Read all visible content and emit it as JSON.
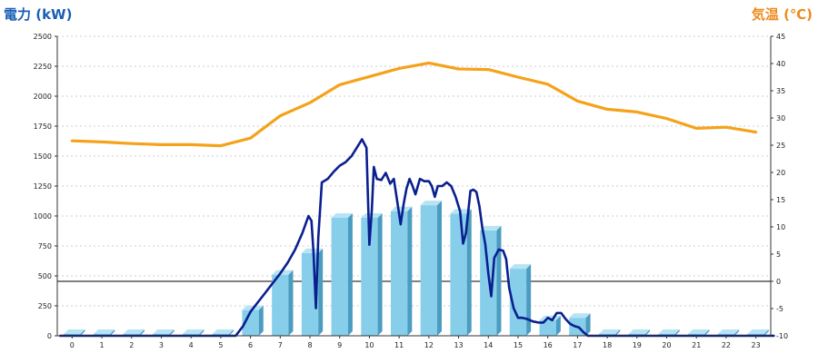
{
  "colors": {
    "power_line": "#0a1f8f",
    "temperature_line": "#f5a21b",
    "bar_front": "#87ceeb",
    "bar_side": "#4a9cc0",
    "bar_top": "#b7e4f5",
    "left_title": "#1a5fb4",
    "right_title": "#ef8a1c",
    "grid": "#bdbdbd"
  },
  "chart_data": {
    "type": "bar+line",
    "left_axis_title": "電力 (kW)",
    "right_axis_title": "気温 (℃)",
    "hours": [
      "0",
      "1",
      "2",
      "3",
      "4",
      "5",
      "6",
      "7",
      "8",
      "9",
      "10",
      "11",
      "12",
      "13",
      "14",
      "15",
      "16",
      "17",
      "18",
      "19",
      "20",
      "21",
      "22",
      "23"
    ],
    "y_left": {
      "min": 0,
      "max": 2500,
      "ticks": [
        0,
        250,
        500,
        750,
        1000,
        1250,
        1500,
        1750,
        2000,
        2250,
        2500
      ]
    },
    "y_right": {
      "min": -10,
      "max": 45,
      "ticks": [
        -10,
        -5,
        0,
        5,
        10,
        15,
        20,
        25,
        30,
        35,
        40,
        45
      ]
    },
    "grid": true,
    "bars": {
      "series_axis": "left",
      "values": [
        15,
        15,
        15,
        15,
        15,
        15,
        215,
        510,
        690,
        985,
        985,
        1040,
        1090,
        1020,
        880,
        560,
        130,
        150,
        15,
        15,
        15,
        15,
        15,
        15
      ]
    },
    "power_line": {
      "series_axis": "left",
      "points": [
        [
          -0.4,
          0
        ],
        [
          5.5,
          0
        ],
        [
          5.75,
          80
        ],
        [
          6,
          200
        ],
        [
          6.25,
          280
        ],
        [
          6.5,
          360
        ],
        [
          6.75,
          440
        ],
        [
          7,
          520
        ],
        [
          7.25,
          610
        ],
        [
          7.5,
          720
        ],
        [
          7.75,
          860
        ],
        [
          7.95,
          1000
        ],
        [
          8.05,
          960
        ],
        [
          8.12,
          700
        ],
        [
          8.2,
          230
        ],
        [
          8.28,
          820
        ],
        [
          8.4,
          1280
        ],
        [
          8.6,
          1310
        ],
        [
          8.8,
          1370
        ],
        [
          9,
          1420
        ],
        [
          9.2,
          1450
        ],
        [
          9.4,
          1500
        ],
        [
          9.6,
          1580
        ],
        [
          9.75,
          1640
        ],
        [
          9.9,
          1570
        ],
        [
          10.0,
          760
        ],
        [
          10.08,
          1050
        ],
        [
          10.15,
          1410
        ],
        [
          10.25,
          1310
        ],
        [
          10.4,
          1300
        ],
        [
          10.55,
          1360
        ],
        [
          10.7,
          1270
        ],
        [
          10.82,
          1310
        ],
        [
          10.95,
          1100
        ],
        [
          11.05,
          930
        ],
        [
          11.15,
          1100
        ],
        [
          11.25,
          1230
        ],
        [
          11.35,
          1310
        ],
        [
          11.45,
          1250
        ],
        [
          11.55,
          1180
        ],
        [
          11.7,
          1310
        ],
        [
          11.85,
          1290
        ],
        [
          12.0,
          1290
        ],
        [
          12.1,
          1250
        ],
        [
          12.2,
          1160
        ],
        [
          12.3,
          1250
        ],
        [
          12.45,
          1250
        ],
        [
          12.6,
          1280
        ],
        [
          12.75,
          1250
        ],
        [
          12.9,
          1160
        ],
        [
          13.05,
          1040
        ],
        [
          13.15,
          770
        ],
        [
          13.25,
          860
        ],
        [
          13.4,
          1210
        ],
        [
          13.5,
          1220
        ],
        [
          13.6,
          1200
        ],
        [
          13.7,
          1080
        ],
        [
          13.8,
          900
        ],
        [
          13.9,
          760
        ],
        [
          14.0,
          520
        ],
        [
          14.1,
          330
        ],
        [
          14.2,
          650
        ],
        [
          14.35,
          720
        ],
        [
          14.5,
          710
        ],
        [
          14.6,
          640
        ],
        [
          14.7,
          400
        ],
        [
          14.85,
          230
        ],
        [
          15.0,
          150
        ],
        [
          15.15,
          150
        ],
        [
          15.3,
          140
        ],
        [
          15.5,
          120
        ],
        [
          15.7,
          110
        ],
        [
          15.85,
          110
        ],
        [
          16.0,
          150
        ],
        [
          16.15,
          130
        ],
        [
          16.3,
          190
        ],
        [
          16.45,
          190
        ],
        [
          16.6,
          140
        ],
        [
          16.75,
          100
        ],
        [
          16.9,
          80
        ],
        [
          17.05,
          70
        ],
        [
          17.2,
          30
        ],
        [
          17.35,
          0
        ],
        [
          23.6,
          0
        ]
      ]
    },
    "temperature_line": {
      "series_axis": "right",
      "points": [
        [
          0,
          25.8
        ],
        [
          1,
          25.6
        ],
        [
          2,
          25.3
        ],
        [
          3,
          25.1
        ],
        [
          4,
          25.1
        ],
        [
          5,
          24.9
        ],
        [
          6,
          26.3
        ],
        [
          7,
          30.4
        ],
        [
          8,
          32.8
        ],
        [
          9,
          36.1
        ],
        [
          10,
          37.6
        ],
        [
          11,
          39.1
        ],
        [
          12,
          40.1
        ],
        [
          13,
          39.0
        ],
        [
          14,
          38.9
        ],
        [
          15,
          37.5
        ],
        [
          16,
          36.2
        ],
        [
          17,
          33.1
        ],
        [
          18,
          31.6
        ],
        [
          19,
          31.1
        ],
        [
          20,
          29.9
        ],
        [
          21,
          28.1
        ],
        [
          22,
          28.3
        ],
        [
          23,
          27.4
        ]
      ]
    }
  }
}
